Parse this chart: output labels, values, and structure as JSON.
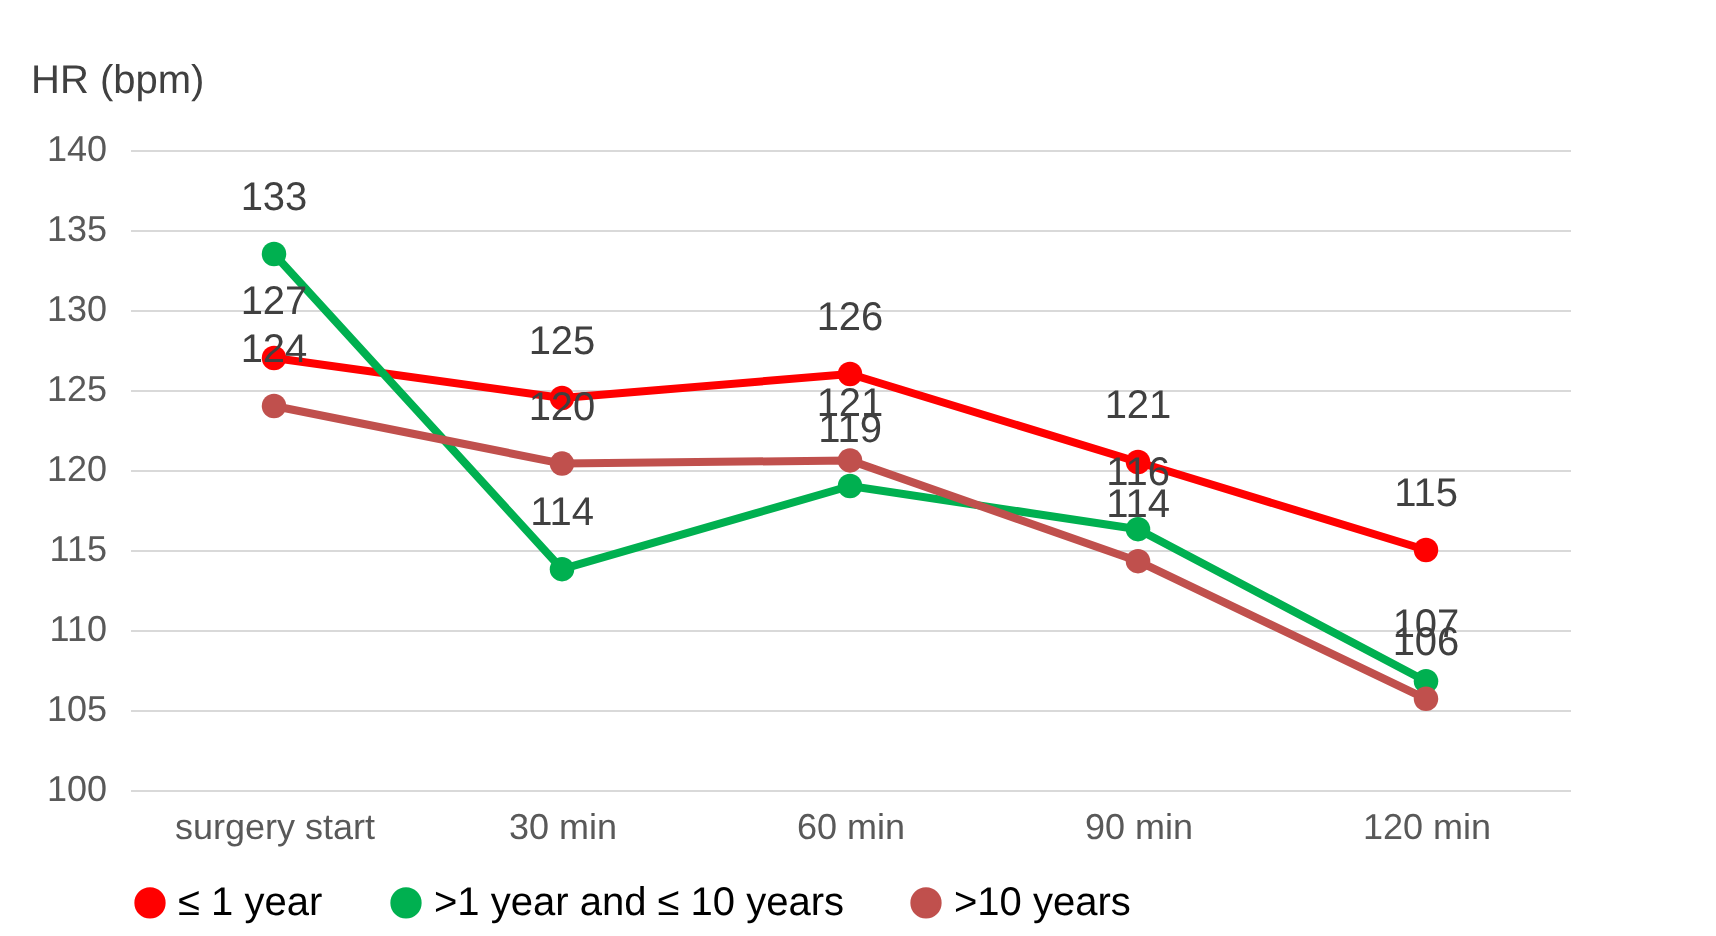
{
  "chart_data": {
    "type": "line",
    "ylabel": "HR (bpm)",
    "categories": [
      "surgery start",
      "30 min",
      "60 min",
      "90 min",
      "120 min"
    ],
    "series": [
      {
        "name": "≤ 1 year",
        "color": "#ff0000",
        "values": [
          127,
          124.5,
          126,
          120.5,
          115
        ],
        "value_labels": [
          "127",
          "125",
          "126",
          "121",
          "115"
        ]
      },
      {
        "name": ">1 year and ≤ 10 years",
        "color": "#00b050",
        "values": [
          133.5,
          113.8,
          119,
          116.3,
          106.8
        ],
        "value_labels": [
          "133",
          "114",
          "119",
          "116",
          "107"
        ]
      },
      {
        "name": ">10 years",
        "color": "#c0504d",
        "values": [
          124,
          120.4,
          120.6,
          114.3,
          105.7
        ],
        "value_labels": [
          "124",
          "120",
          "121",
          "114",
          "106"
        ]
      }
    ],
    "ylim": [
      100,
      140
    ],
    "yticks": [
      100,
      105,
      110,
      115,
      120,
      125,
      130,
      135,
      140
    ],
    "grid": "y",
    "legend": "bottom",
    "marker": "circle",
    "line_style": "solid"
  }
}
